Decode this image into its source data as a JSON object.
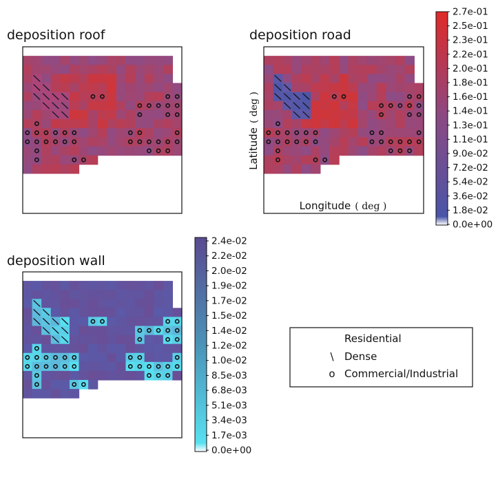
{
  "chart_data": [
    {
      "type": "heatmap",
      "title": "deposition roof",
      "colormap": [
        "#ffffff",
        "#4a55a8",
        "#e02a28"
      ],
      "grid": false
    },
    {
      "type": "heatmap",
      "title": "deposition road",
      "xlabel": "Longitude",
      "xlabel_unit": "( deg )",
      "ylabel": "Latitude",
      "ylabel_unit": "( deg )",
      "colormap": [
        "#ffffff",
        "#4a55a8",
        "#e02a28"
      ],
      "colorbar_ticks": [
        "2.7e-01",
        "2.5e-01",
        "2.3e-01",
        "2.2e-01",
        "2.0e-01",
        "1.8e-01",
        "1.6e-01",
        "1.4e-01",
        "1.3e-01",
        "1.1e-01",
        "9.0e-02",
        "7.2e-02",
        "5.4e-02",
        "3.6e-02",
        "1.8e-02",
        "0.0e+00"
      ],
      "grid": false
    },
    {
      "type": "heatmap",
      "title": "deposition wall",
      "colormap": [
        "#ffffff",
        "#58e0f0",
        "#5a4a90"
      ],
      "colorbar_ticks": [
        "2.4e-02",
        "2.2e-02",
        "2.0e-02",
        "1.9e-02",
        "1.7e-02",
        "1.5e-02",
        "1.4e-02",
        "1.2e-02",
        "1.0e-02",
        "8.5e-03",
        "6.8e-03",
        "5.1e-03",
        "3.4e-03",
        "1.7e-03",
        "0.0e+00"
      ],
      "grid": false
    }
  ],
  "legend": {
    "title": "Residential",
    "entries": [
      {
        "marker": "\\",
        "label": "Dense"
      },
      {
        "marker": "o",
        "label": "Commercial/Industrial"
      }
    ]
  }
}
